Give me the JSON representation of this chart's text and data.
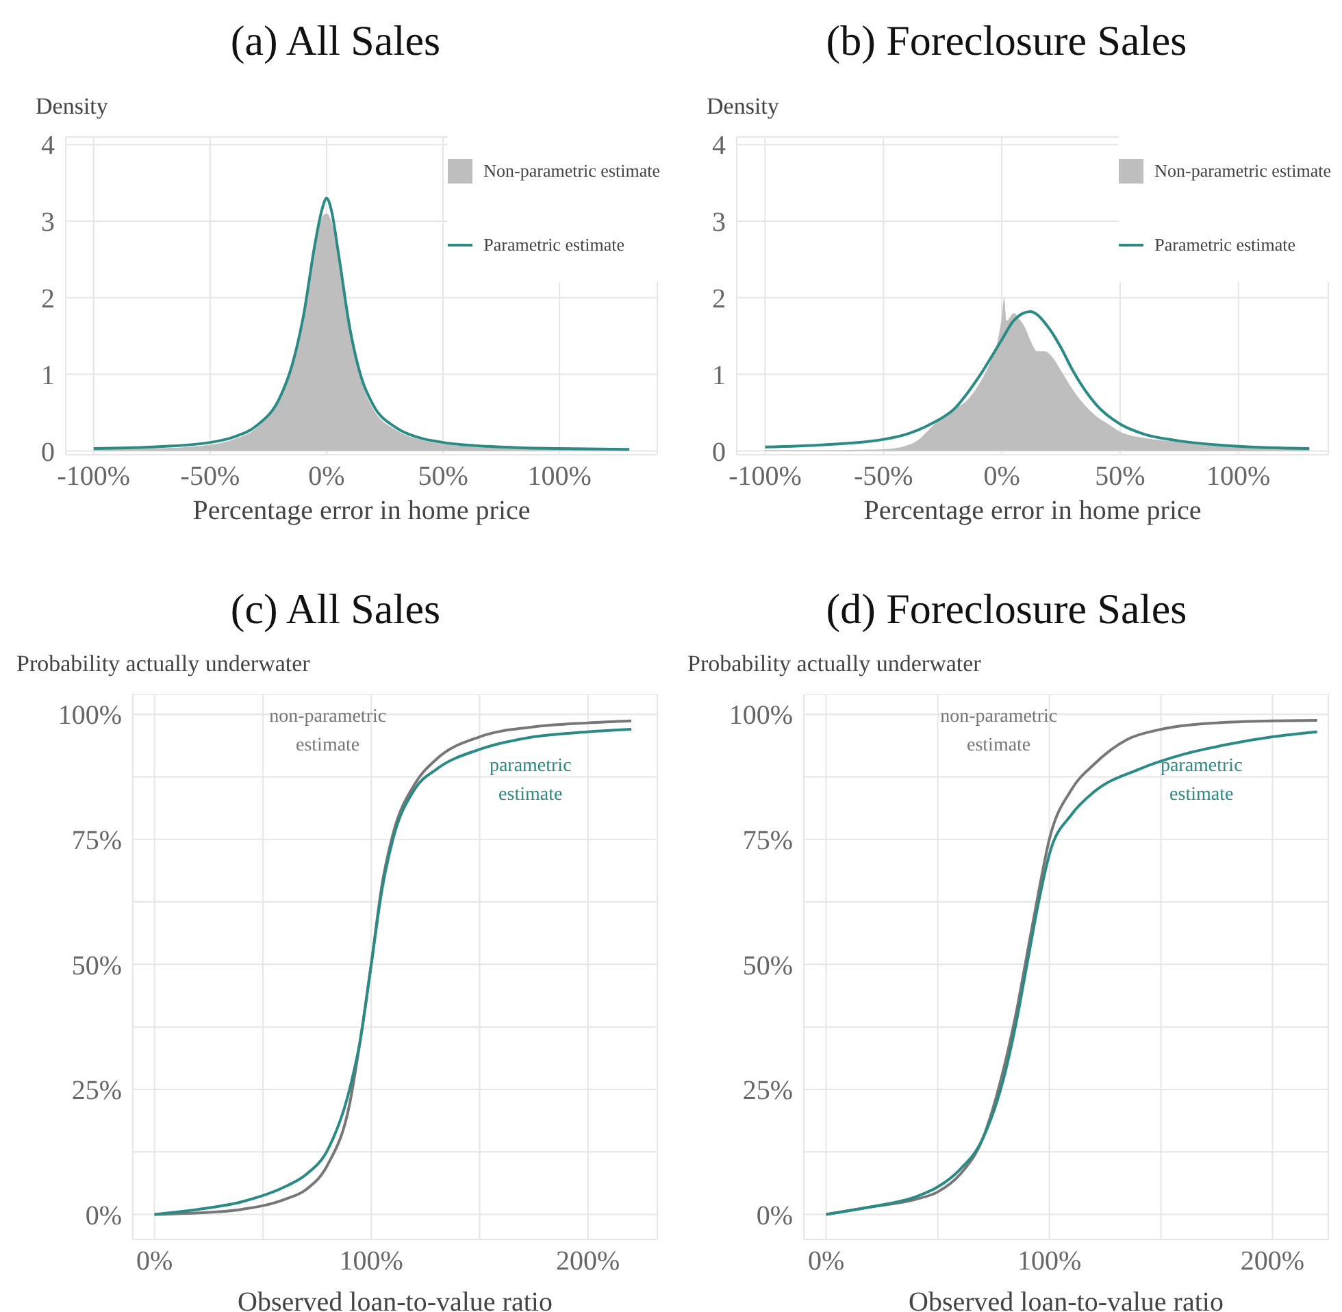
{
  "chart_data": [
    {
      "type": "line",
      "title": "(a) All Sales",
      "ylabel": "Density",
      "xlabel": "Percentage error in home price",
      "xlim": [
        -112,
        142
      ],
      "ylim": [
        -0.05,
        4.1
      ],
      "xticks": [
        {
          "value": -100,
          "label": "-100%"
        },
        {
          "value": -50,
          "label": "-50%"
        },
        {
          "value": 0,
          "label": "0%"
        },
        {
          "value": 50,
          "label": "50%"
        },
        {
          "value": 100,
          "label": "100%"
        }
      ],
      "yticks": [
        0,
        1,
        2,
        3,
        4
      ],
      "grid": true,
      "legend": "top right",
      "series": [
        {
          "name": "Non-parametric estimate",
          "type": "area",
          "color": "#bebebe",
          "x": [
            -100,
            -75,
            -50,
            -40,
            -30,
            -20,
            -15,
            -10,
            -5,
            -2,
            0,
            2,
            5,
            10,
            15,
            20,
            30,
            40,
            50,
            75,
            100,
            130
          ],
          "values": [
            0.02,
            0.03,
            0.08,
            0.15,
            0.3,
            0.72,
            1.15,
            1.8,
            2.7,
            3.05,
            3.1,
            3.0,
            2.55,
            1.55,
            0.9,
            0.55,
            0.27,
            0.15,
            0.09,
            0.04,
            0.02,
            0.01
          ]
        },
        {
          "name": "Parametric estimate",
          "color": "#2a8a84",
          "x": [
            -100,
            -75,
            -50,
            -40,
            -30,
            -20,
            -15,
            -10,
            -5,
            -2,
            0,
            2,
            5,
            10,
            15,
            20,
            30,
            40,
            50,
            75,
            100,
            130
          ],
          "values": [
            0.03,
            0.05,
            0.11,
            0.18,
            0.33,
            0.7,
            1.1,
            1.75,
            2.7,
            3.15,
            3.3,
            3.15,
            2.6,
            1.6,
            0.95,
            0.6,
            0.3,
            0.17,
            0.11,
            0.05,
            0.03,
            0.02
          ]
        }
      ]
    },
    {
      "type": "line",
      "title": "(b) Foreclosure Sales",
      "ylabel": "Density",
      "xlabel": "Percentage error in home price",
      "xlim": [
        -112,
        138
      ],
      "ylim": [
        -0.05,
        4.1
      ],
      "xticks": [
        {
          "value": -100,
          "label": "-100%"
        },
        {
          "value": -50,
          "label": "-50%"
        },
        {
          "value": 0,
          "label": "0%"
        },
        {
          "value": 50,
          "label": "50%"
        },
        {
          "value": 100,
          "label": "100%"
        }
      ],
      "yticks": [
        0,
        1,
        2,
        3,
        4
      ],
      "grid": true,
      "legend": "top right",
      "series": [
        {
          "name": "Non-parametric estimate",
          "type": "area",
          "color": "#bebebe",
          "x": [
            -100,
            -75,
            -50,
            -40,
            -35,
            -30,
            -25,
            -20,
            -15,
            -10,
            -5,
            -2,
            0,
            1,
            2,
            5,
            8,
            10,
            12,
            15,
            18,
            22,
            25,
            30,
            35,
            40,
            45,
            50,
            60,
            75,
            100,
            130
          ],
          "values": [
            0.01,
            0.01,
            0.02,
            0.07,
            0.15,
            0.3,
            0.45,
            0.55,
            0.65,
            0.85,
            1.15,
            1.4,
            1.75,
            2.0,
            1.7,
            1.8,
            1.7,
            1.6,
            1.45,
            1.3,
            1.3,
            1.2,
            1.05,
            0.8,
            0.6,
            0.45,
            0.35,
            0.25,
            0.17,
            0.12,
            0.07,
            0.02
          ]
        },
        {
          "name": "Parametric estimate",
          "color": "#2a8a84",
          "x": [
            -100,
            -75,
            -50,
            -40,
            -30,
            -20,
            -10,
            0,
            5,
            12,
            20,
            25,
            30,
            40,
            50,
            60,
            75,
            100,
            130
          ],
          "values": [
            0.05,
            0.08,
            0.15,
            0.22,
            0.35,
            0.55,
            0.95,
            1.45,
            1.7,
            1.82,
            1.6,
            1.35,
            1.05,
            0.6,
            0.35,
            0.22,
            0.13,
            0.06,
            0.03
          ]
        }
      ]
    },
    {
      "type": "line",
      "title": "(c) All Sales",
      "ylabel": "Probability actually underwater",
      "xlabel": "Observed loan-to-value ratio",
      "xlim": [
        -10,
        232
      ],
      "ylim": [
        -5,
        104
      ],
      "xticks": [
        {
          "value": 0,
          "label": "0%"
        },
        {
          "value": 50,
          "label": null
        },
        {
          "value": 100,
          "label": "100%"
        },
        {
          "value": 150,
          "label": null
        },
        {
          "value": 200,
          "label": "200%"
        }
      ],
      "yticks": [
        {
          "value": 0,
          "label": "0%"
        },
        {
          "value": 12.5,
          "label": null
        },
        {
          "value": 25,
          "label": "25%"
        },
        {
          "value": 37.5,
          "label": null
        },
        {
          "value": 50,
          "label": "50%"
        },
        {
          "value": 62.5,
          "label": null
        },
        {
          "value": 75,
          "label": "75%"
        },
        {
          "value": 87.5,
          "label": null
        },
        {
          "value": 100,
          "label": "100%"
        }
      ],
      "grid": true,
      "annotations": [
        "non-parametric estimate",
        "parametric estimate"
      ],
      "series": [
        {
          "color": "#777777",
          "x": [
            0,
            20,
            40,
            60,
            70,
            80,
            90,
            95,
            100,
            105,
            110,
            120,
            130,
            150,
            175,
            200,
            220
          ],
          "values": [
            0,
            0.3,
            1,
            3,
            5,
            10,
            22,
            35,
            50,
            66,
            76,
            86,
            91,
            95.5,
            97.5,
            98.3,
            98.7
          ]
        },
        {
          "color": "#2a8a84",
          "x": [
            0,
            20,
            40,
            60,
            70,
            80,
            90,
            95,
            100,
            105,
            110,
            120,
            130,
            150,
            175,
            200,
            220
          ],
          "values": [
            0,
            1,
            2.5,
            5.5,
            8,
            13,
            25,
            35,
            50,
            65,
            75,
            85,
            89,
            93,
            95.5,
            96.5,
            97
          ]
        }
      ]
    },
    {
      "type": "line",
      "title": "(d) Foreclosure Sales",
      "ylabel": "Probability actually underwater",
      "xlabel": "Observed loan-to-value ratio",
      "xlim": [
        -10,
        225
      ],
      "ylim": [
        -5,
        104
      ],
      "xticks": [
        {
          "value": 0,
          "label": "0%"
        },
        {
          "value": 50,
          "label": null
        },
        {
          "value": 100,
          "label": "100%"
        },
        {
          "value": 150,
          "label": null
        },
        {
          "value": 200,
          "label": "200%"
        }
      ],
      "yticks": [
        {
          "value": 0,
          "label": "0%"
        },
        {
          "value": 12.5,
          "label": null
        },
        {
          "value": 25,
          "label": "25%"
        },
        {
          "value": 37.5,
          "label": null
        },
        {
          "value": 50,
          "label": "50%"
        },
        {
          "value": 62.5,
          "label": null
        },
        {
          "value": 75,
          "label": "75%"
        },
        {
          "value": 87.5,
          "label": null
        },
        {
          "value": 100,
          "label": "100%"
        }
      ],
      "grid": true,
      "annotations": [
        "non-parametric estimate",
        "parametric estimate"
      ],
      "series": [
        {
          "color": "#777777",
          "x": [
            0,
            20,
            40,
            50,
            60,
            70,
            80,
            85,
            90,
            95,
            100,
            110,
            120,
            135,
            150,
            175,
            200,
            220
          ],
          "values": [
            0,
            1.5,
            3,
            4.5,
            8,
            15,
            30,
            40,
            52,
            64,
            75,
            85,
            90,
            95,
            97,
            98.3,
            98.7,
            98.8
          ]
        },
        {
          "color": "#2a8a84",
          "x": [
            0,
            20,
            40,
            50,
            60,
            70,
            80,
            85,
            90,
            95,
            100,
            110,
            120,
            140,
            160,
            180,
            200,
            220
          ],
          "values": [
            0,
            1.5,
            3.5,
            5.5,
            9,
            15,
            28,
            38,
            50,
            62,
            72,
            80,
            84.5,
            89,
            92,
            94,
            95.5,
            96.5
          ]
        }
      ]
    }
  ]
}
